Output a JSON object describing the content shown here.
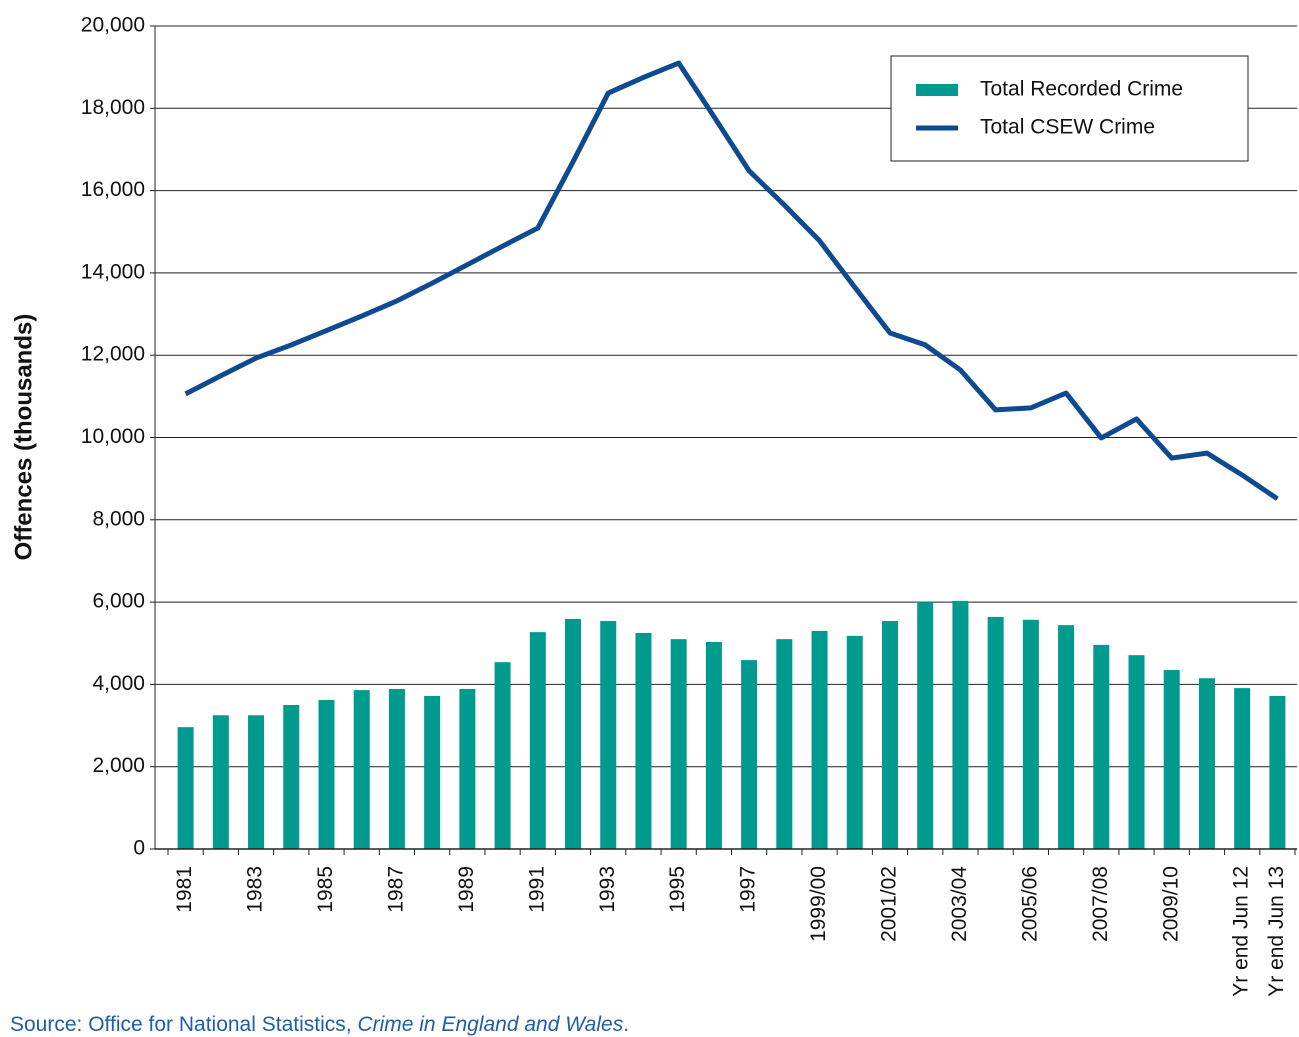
{
  "chart_data": {
    "type": "bar-line",
    "y_label": "Offences (thousands)",
    "categories": [
      "1981",
      null,
      "1983",
      null,
      "1985",
      null,
      "1987",
      null,
      "1989",
      null,
      "1991",
      null,
      "1993",
      null,
      "1995",
      null,
      "1997",
      null,
      "1999/00",
      null,
      "2001/02",
      null,
      "2003/04",
      null,
      "2005/06",
      null,
      "2007/08",
      null,
      "2009/10",
      null,
      "Yr end Jun 12",
      "Yr end Jun 13"
    ],
    "series": [
      {
        "name": "Total Recorded Crime",
        "kind": "bar",
        "color": "#009a8e",
        "values": [
          2960,
          3250,
          3250,
          3500,
          3620,
          3860,
          3890,
          3720,
          3890,
          4540,
          5270,
          5590,
          5540,
          5250,
          5100,
          5030,
          4590,
          5100,
          5300,
          5180,
          5540,
          6000,
          6030,
          5640,
          5570,
          5440,
          4960,
          4710,
          4350,
          4150,
          3910,
          3720
        ]
      },
      {
        "name": "Total CSEW Crime",
        "kind": "line",
        "color": "#0d4a91",
        "values": [
          11060,
          11500,
          11930,
          12250,
          12600,
          12950,
          13320,
          13750,
          14200,
          14650,
          15090,
          16700,
          18370,
          18750,
          19100,
          17800,
          16480,
          15650,
          14780,
          13650,
          12540,
          12250,
          11640,
          10670,
          10720,
          11080,
          9990,
          10450,
          9500,
          9620,
          9090,
          8510
        ]
      }
    ],
    "ylim": [
      0,
      20000
    ],
    "yticks": [
      0,
      {
        "value": 2000,
        "label": "2,000"
      },
      {
        "value": 4000,
        "label": "4,000"
      },
      {
        "value": 6000,
        "label": "6,000"
      },
      {
        "value": 8000,
        "label": "8,000"
      },
      {
        "value": 10000,
        "label": "10,000"
      },
      {
        "value": 12000,
        "label": "12,000"
      },
      {
        "value": 14000,
        "label": "14,000"
      },
      {
        "value": 16000,
        "label": "16,000"
      },
      {
        "value": 18000,
        "label": "18,000"
      },
      {
        "value": 20000,
        "label": "20,000"
      }
    ],
    "grid": true,
    "legend": "top-right",
    "source": {
      "text": "Source: Office for National Statistics,",
      "title": "Crime in England and Wales",
      "end": "."
    }
  }
}
